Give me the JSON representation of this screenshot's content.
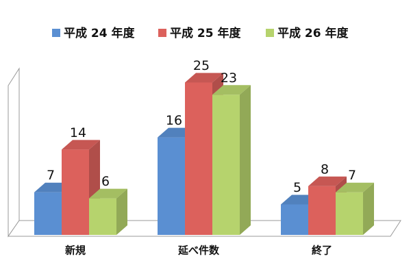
{
  "chart_data": {
    "type": "bar3d",
    "categories": [
      "新規",
      "延べ件数",
      "終了"
    ],
    "series": [
      {
        "name": "平成 24 年度",
        "color": "#5a8fd2",
        "values": [
          7,
          16,
          5
        ]
      },
      {
        "name": "平成 25 年度",
        "color": "#dc615c",
        "values": [
          14,
          25,
          8
        ]
      },
      {
        "name": "平成 26 年度",
        "color": "#b6d36d",
        "values": [
          6,
          23,
          7
        ]
      }
    ],
    "legend": "top"
  }
}
